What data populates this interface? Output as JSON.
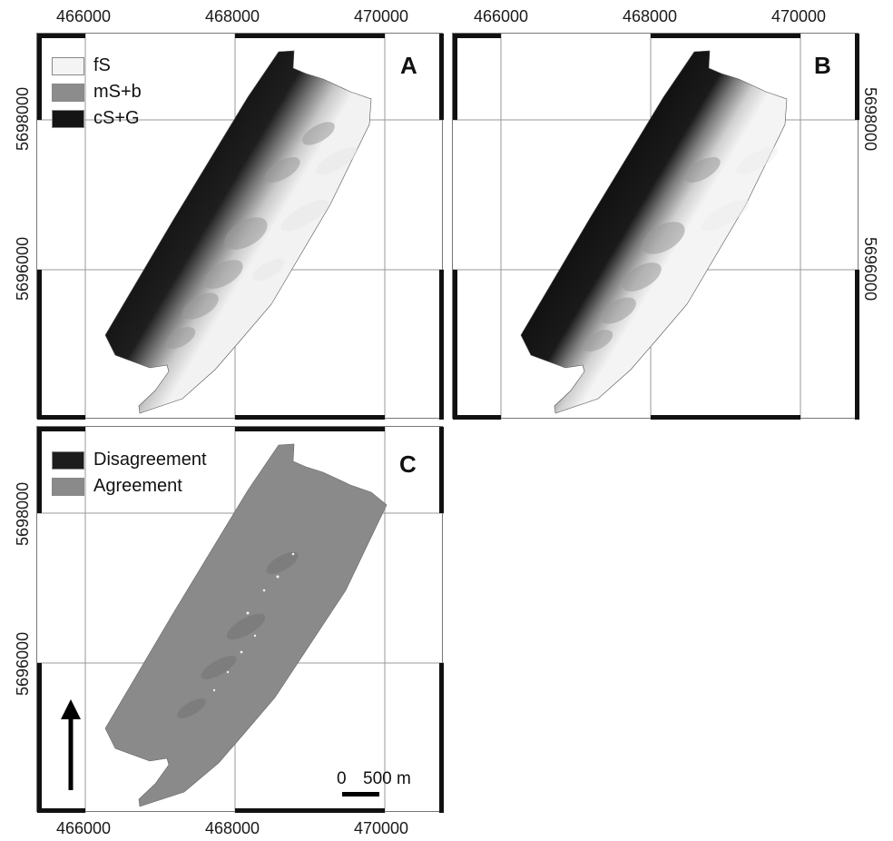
{
  "axes": {
    "x_ticks": [
      "466000",
      "468000",
      "470000"
    ],
    "y_ticks": [
      "5698000",
      "5696000"
    ]
  },
  "panels": [
    {
      "id": "A",
      "letter": "A",
      "legend": [
        {
          "label": "fS",
          "color": "#f4f4f4"
        },
        {
          "label": "mS+b",
          "color": "#8c8c8c"
        },
        {
          "label": "cS+G",
          "color": "#141414"
        }
      ]
    },
    {
      "id": "B",
      "letter": "B",
      "legend": []
    },
    {
      "id": "C",
      "letter": "C",
      "legend": [
        {
          "label": "Disagreement",
          "color": "#1c1c1c"
        },
        {
          "label": "Agreement",
          "color": "#8a8a8a"
        }
      ],
      "north_arrow": "north-arrow-icon",
      "scale_bar": {
        "left_label": "0",
        "right_label": "500 m"
      }
    }
  ],
  "colors": {
    "fine_sand": "#f4f4f4",
    "medium_sand": "#8c8c8c",
    "coarse_sand_gravel": "#141414",
    "agreement": "#8a8a8a",
    "disagreement": "#1c1c1c"
  }
}
